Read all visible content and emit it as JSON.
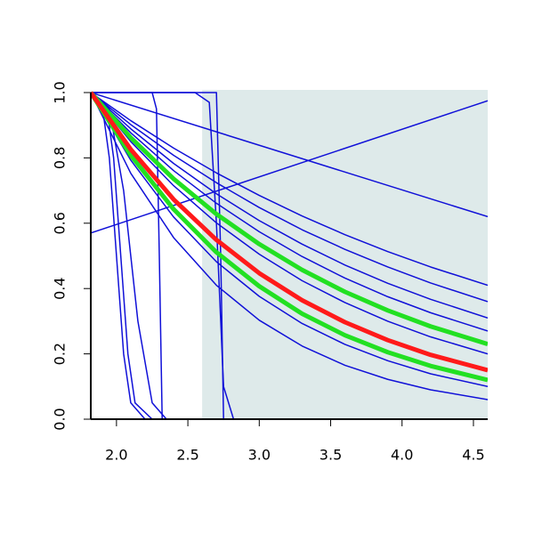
{
  "chart_data": {
    "type": "line",
    "xlim": [
      1.82,
      4.6
    ],
    "ylim": [
      0,
      1.0
    ],
    "xticks": [
      {
        "value": 2,
        "label": "2.0"
      },
      {
        "value": 2.5,
        "label": "2.5"
      },
      {
        "value": 3,
        "label": "3.0"
      },
      {
        "value": 3.5,
        "label": "3.5"
      },
      {
        "value": 4,
        "label": "4.0"
      },
      {
        "value": 4.5,
        "label": "4.5"
      }
    ],
    "yticks": [
      {
        "value": 0,
        "label": "0.0"
      },
      {
        "value": 0.2,
        "label": "0.2"
      },
      {
        "value": 0.4,
        "label": "0.4"
      },
      {
        "value": 0.6,
        "label": "0.6"
      },
      {
        "value": 0.8,
        "label": "0.8"
      },
      {
        "value": 1,
        "label": "1.0"
      }
    ],
    "highlight_xrange": [
      2.6,
      4.6
    ],
    "highlight_color": "#deeaea",
    "series": [
      {
        "color": "#1010d8",
        "line_width": 1.5,
        "x": [
          1.82,
          2.1,
          2.4,
          2.7,
          3.0,
          3.3,
          3.6,
          3.9,
          4.2,
          4.6
        ],
        "values": [
          1,
          0.914,
          0.83,
          0.754,
          0.685,
          0.622,
          0.565,
          0.513,
          0.466,
          0.41
        ]
      },
      {
        "color": "#1010d8",
        "line_width": 1.5,
        "x": [
          1.82,
          2.1,
          2.4,
          2.7,
          3.0,
          3.3,
          3.6,
          3.9,
          4.2,
          4.6
        ],
        "values": [
          1,
          0.902,
          0.808,
          0.724,
          0.648,
          0.58,
          0.52,
          0.466,
          0.417,
          0.36
        ]
      },
      {
        "color": "#1010d8",
        "line_width": 1.5,
        "x": [
          1.82,
          2.1,
          2.4,
          2.7,
          3.0,
          3.3,
          3.6,
          3.9,
          4.2,
          4.6
        ],
        "values": [
          1,
          0.889,
          0.783,
          0.69,
          0.608,
          0.536,
          0.472,
          0.416,
          0.367,
          0.31
        ]
      },
      {
        "color": "#1010d8",
        "line_width": 1.5,
        "x": [
          1.82,
          2.1,
          2.4,
          2.7,
          3.0,
          3.3,
          3.6,
          3.9,
          4.2,
          4.6
        ],
        "values": [
          1,
          0.877,
          0.761,
          0.661,
          0.574,
          0.498,
          0.432,
          0.375,
          0.326,
          0.27
        ]
      },
      {
        "color": "#1010d8",
        "line_width": 1.5,
        "x": [
          1.82,
          2.1,
          2.4,
          2.7,
          3.0,
          3.3,
          3.6,
          3.9,
          4.2,
          4.6
        ],
        "values": [
          1,
          0.85,
          0.715,
          0.601,
          0.505,
          0.424,
          0.357,
          0.3,
          0.252,
          0.2
        ]
      },
      {
        "color": "#1010d8",
        "line_width": 1.5,
        "x": [
          1.82,
          2.1,
          2.4,
          2.7,
          3.0,
          3.3,
          3.6,
          3.9,
          4.2,
          4.6
        ],
        "values": [
          1,
          0.793,
          0.619,
          0.482,
          0.376,
          0.293,
          0.229,
          0.179,
          0.139,
          0.1
        ]
      },
      {
        "color": "#1010d8",
        "line_width": 1.5,
        "x": [
          1.82,
          2.1,
          2.4,
          2.7,
          3.0,
          3.3,
          3.6,
          3.9,
          4.2,
          4.6
        ],
        "values": [
          1,
          0.753,
          0.556,
          0.41,
          0.303,
          0.224,
          0.165,
          0.122,
          0.09,
          0.06
        ]
      },
      {
        "color": "#1010d8",
        "line_width": 1.5,
        "x": [
          1.82,
          4.6
        ],
        "values": [
          1,
          0.62
        ]
      },
      {
        "color": "#1010d8",
        "line_width": 1.5,
        "x": [
          1.82,
          4.6
        ],
        "values": [
          0.57,
          0.975
        ]
      },
      {
        "color": "#1010d8",
        "line_width": 1.5,
        "x": [
          1.82,
          1.9,
          1.95,
          2.0,
          2.05,
          2.1,
          2.2,
          4.6
        ],
        "values": [
          1,
          0.96,
          0.8,
          0.5,
          0.2,
          0.05,
          0,
          0
        ]
      },
      {
        "color": "#1010d8",
        "line_width": 1.5,
        "x": [
          1.82,
          1.93,
          1.98,
          2.03,
          2.08,
          2.13,
          2.25,
          4.6
        ],
        "values": [
          1,
          0.96,
          0.8,
          0.5,
          0.2,
          0.05,
          0,
          0
        ]
      },
      {
        "color": "#1010d8",
        "line_width": 1.5,
        "x": [
          1.82,
          1.95,
          2.05,
          2.15,
          2.25,
          2.35,
          4.6
        ],
        "values": [
          1,
          0.95,
          0.7,
          0.3,
          0.05,
          0,
          0
        ]
      },
      {
        "color": "#1010d8",
        "line_width": 1.5,
        "x": [
          1.82,
          2.25,
          2.28,
          2.3,
          2.32,
          4.6
        ],
        "values": [
          1,
          1,
          0.95,
          0.5,
          0,
          0
        ]
      },
      {
        "color": "#1010d8",
        "line_width": 1.5,
        "x": [
          1.82,
          2.7,
          2.73,
          2.75,
          4.6
        ],
        "values": [
          1,
          1,
          0.5,
          0,
          0
        ]
      },
      {
        "color": "#1010d8",
        "line_width": 1.5,
        "x": [
          1.82,
          2.55,
          2.65,
          2.7,
          2.75,
          2.82,
          4.6
        ],
        "values": [
          1,
          1,
          0.97,
          0.6,
          0.1,
          0,
          0
        ]
      },
      {
        "color": "#22e022",
        "line_width": 5,
        "x": [
          1.82,
          2.1,
          2.4,
          2.7,
          3.0,
          3.3,
          3.6,
          3.9,
          4.2,
          4.6
        ],
        "values": [
          1,
          0.862,
          0.736,
          0.628,
          0.536,
          0.457,
          0.39,
          0.333,
          0.284,
          0.23
        ]
      },
      {
        "color": "#22e022",
        "line_width": 5,
        "x": [
          1.82,
          2.1,
          2.4,
          2.7,
          3.0,
          3.3,
          3.6,
          3.9,
          4.2,
          4.6
        ],
        "values": [
          1,
          0.808,
          0.643,
          0.511,
          0.407,
          0.323,
          0.257,
          0.205,
          0.163,
          0.12
        ]
      },
      {
        "color": "#ff1a1a",
        "line_width": 5,
        "x": [
          1.82,
          2.1,
          2.4,
          2.7,
          3.0,
          3.3,
          3.6,
          3.9,
          4.2,
          4.6
        ],
        "values": [
          1,
          0.826,
          0.673,
          0.549,
          0.447,
          0.364,
          0.297,
          0.242,
          0.197,
          0.15
        ]
      }
    ]
  }
}
